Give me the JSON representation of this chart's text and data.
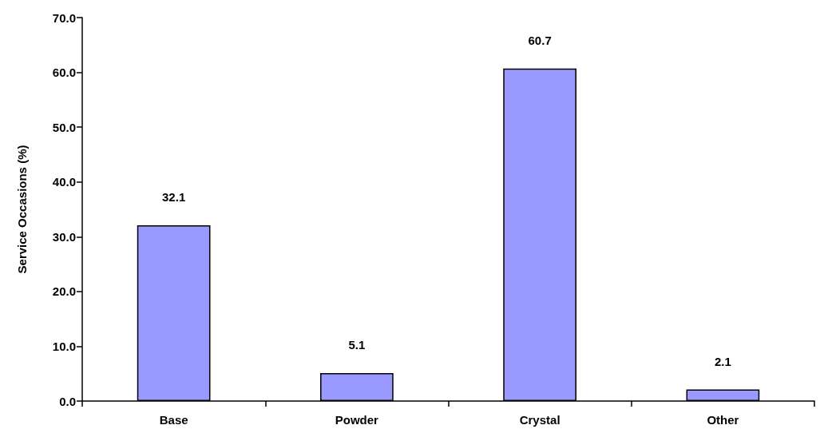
{
  "chart_data": {
    "type": "bar",
    "ylabel": "Service Occasions (%)",
    "categories": [
      "Base",
      "Powder",
      "Crystal",
      "Other"
    ],
    "values": [
      32.1,
      5.1,
      60.7,
      2.1
    ],
    "color": "#9999ff",
    "ylim": [
      0,
      70
    ],
    "yticks": [
      {
        "value": 0,
        "label": "0.0"
      },
      {
        "value": 10,
        "label": "10.0"
      },
      {
        "value": 20,
        "label": "20.0"
      },
      {
        "value": 30,
        "label": "30.0"
      },
      {
        "value": 40,
        "label": "40.0"
      },
      {
        "value": 50,
        "label": "50.0"
      },
      {
        "value": 60,
        "label": "60.0"
      },
      {
        "value": 70,
        "label": "70.0"
      }
    ],
    "data_labels": true
  }
}
